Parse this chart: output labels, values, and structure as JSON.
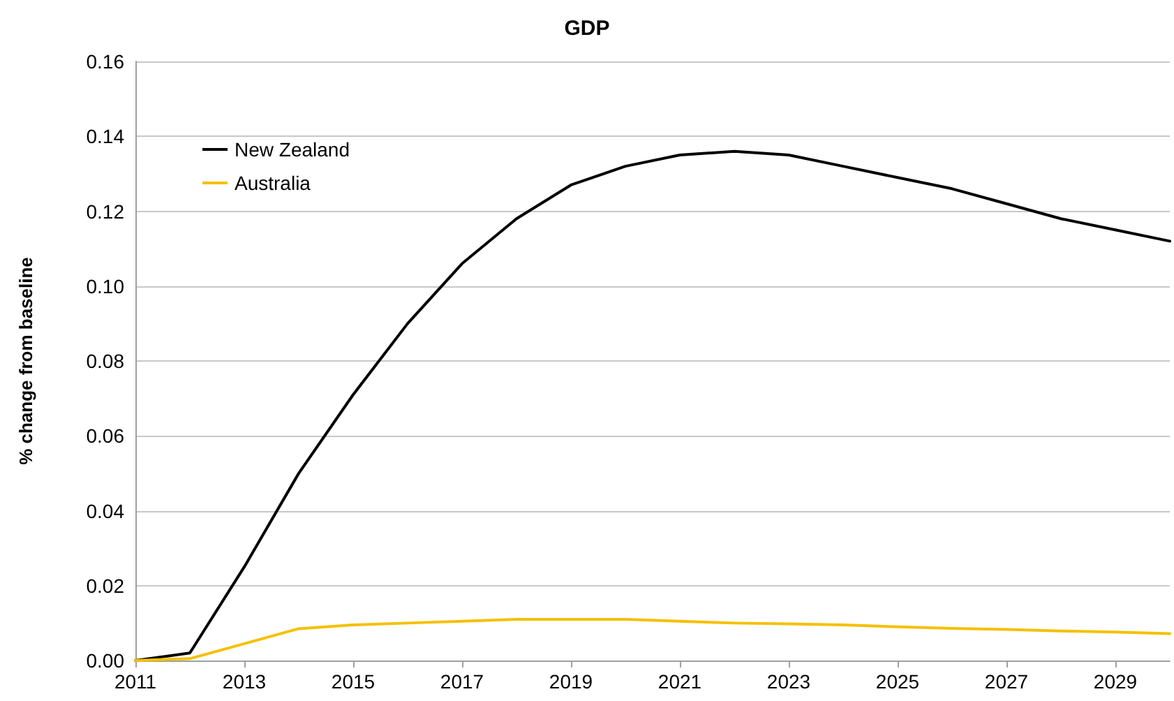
{
  "chart_data": {
    "type": "line",
    "title": "GDP",
    "ylabel": "% change from baseline",
    "categories": [
      "2011",
      null,
      "2013",
      null,
      "2015",
      null,
      "2017",
      null,
      "2019",
      null,
      "2021",
      null,
      "2023",
      null,
      "2025",
      null,
      "2027",
      null,
      "2029",
      null
    ],
    "series": [
      {
        "name": "New Zealand",
        "color": "#000000",
        "values": [
          0,
          0.002,
          0.025,
          0.05,
          0.071,
          0.09,
          0.106,
          0.118,
          0.127,
          0.132,
          0.135,
          0.136,
          0.135,
          0.132,
          0.129,
          0.126,
          0.122,
          0.118,
          0.115,
          0.112
        ]
      },
      {
        "name": "Australia",
        "color": "#f5c000",
        "values": [
          0,
          0.0005,
          0.0045,
          0.0085,
          0.0095,
          0.01,
          0.0105,
          0.011,
          0.011,
          0.011,
          0.0105,
          0.01,
          0.0098,
          0.0095,
          0.009,
          0.0086,
          0.0083,
          0.0079,
          0.0076,
          0.0072
        ]
      }
    ],
    "ylim": [
      0,
      0.16
    ],
    "yticks": [
      {
        "value": 0,
        "label": "0.00"
      },
      {
        "value": 0.02,
        "label": "0.02"
      },
      {
        "value": 0.04,
        "label": "0.04"
      },
      {
        "value": 0.06,
        "label": "0.06"
      },
      {
        "value": 0.08,
        "label": "0.08"
      },
      {
        "value": 0.1,
        "label": "0.10"
      },
      {
        "value": 0.12,
        "label": "0.12"
      },
      {
        "value": 0.14,
        "label": "0.14"
      },
      {
        "value": 0.16,
        "label": "0.16"
      }
    ],
    "grid": "y",
    "legend": "top left",
    "marker": "none",
    "line_style": "solid"
  }
}
